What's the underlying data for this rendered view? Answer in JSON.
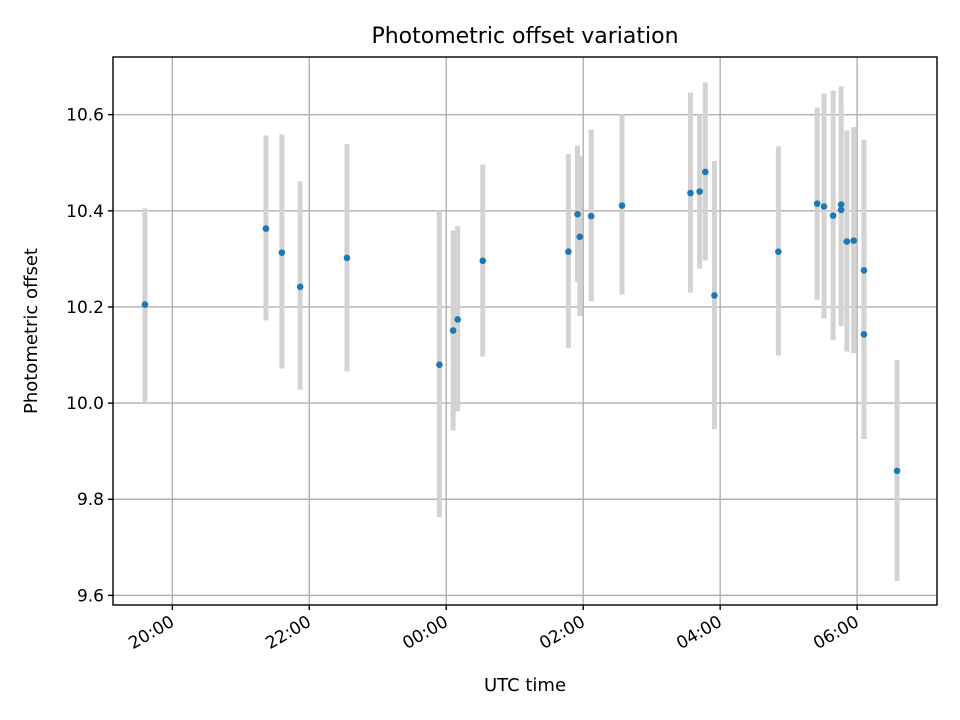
{
  "chart_data": {
    "type": "scatter",
    "title": "Photometric offset variation",
    "xlabel": "UTC time",
    "ylabel": "Photometric offset",
    "x_unit": "UTC clock time",
    "xlim": [
      "19:08",
      "07:10"
    ],
    "ylim": [
      9.58,
      10.72
    ],
    "xticks": [
      "20:00",
      "22:00",
      "00:00",
      "02:00",
      "04:00",
      "06:00"
    ],
    "yticks": [
      "9.6",
      "9.8",
      "10.0",
      "10.2",
      "10.4",
      "10.6"
    ],
    "grid": true,
    "marker_color": "#1f77b4",
    "errorbar_color": "#d3d3d3",
    "points": [
      {
        "t": "19:36",
        "y": 10.205,
        "lo": 10.0,
        "hi": 10.405
      },
      {
        "t": "21:22",
        "y": 10.363,
        "lo": 10.172,
        "hi": 10.557
      },
      {
        "t": "21:36",
        "y": 10.313,
        "lo": 10.072,
        "hi": 10.559
      },
      {
        "t": "21:52",
        "y": 10.242,
        "lo": 10.028,
        "hi": 10.461
      },
      {
        "t": "22:33",
        "y": 10.302,
        "lo": 10.066,
        "hi": 10.539
      },
      {
        "t": "23:54",
        "y": 10.08,
        "lo": 9.763,
        "hi": 10.401
      },
      {
        "t": "00:06",
        "y": 10.151,
        "lo": 9.943,
        "hi": 10.359
      },
      {
        "t": "00:10",
        "y": 10.174,
        "lo": 9.983,
        "hi": 10.368
      },
      {
        "t": "00:32",
        "y": 10.296,
        "lo": 10.097,
        "hi": 10.496
      },
      {
        "t": "01:47",
        "y": 10.315,
        "lo": 10.114,
        "hi": 10.518
      },
      {
        "t": "01:55",
        "y": 10.393,
        "lo": 10.252,
        "hi": 10.536
      },
      {
        "t": "01:57",
        "y": 10.346,
        "lo": 10.181,
        "hi": 10.513
      },
      {
        "t": "02:07",
        "y": 10.389,
        "lo": 10.212,
        "hi": 10.569
      },
      {
        "t": "02:34",
        "y": 10.411,
        "lo": 10.226,
        "hi": 10.601
      },
      {
        "t": "03:34",
        "y": 10.437,
        "lo": 10.23,
        "hi": 10.646
      },
      {
        "t": "03:42",
        "y": 10.44,
        "lo": 10.28,
        "hi": 10.601
      },
      {
        "t": "03:47",
        "y": 10.481,
        "lo": 10.297,
        "hi": 10.667
      },
      {
        "t": "03:55",
        "y": 10.224,
        "lo": 9.946,
        "hi": 10.504
      },
      {
        "t": "04:51",
        "y": 10.315,
        "lo": 10.099,
        "hi": 10.534
      },
      {
        "t": "05:25",
        "y": 10.415,
        "lo": 10.215,
        "hi": 10.615
      },
      {
        "t": "05:31",
        "y": 10.409,
        "lo": 10.176,
        "hi": 10.644
      },
      {
        "t": "05:39",
        "y": 10.39,
        "lo": 10.131,
        "hi": 10.65
      },
      {
        "t": "05:46",
        "y": 10.413,
        "lo": 10.16,
        "hi": 10.659
      },
      {
        "t": "05:46",
        "y": 10.402,
        "lo": 10.19,
        "hi": 10.61
      },
      {
        "t": "05:51",
        "y": 10.336,
        "lo": 10.107,
        "hi": 10.567
      },
      {
        "t": "05:57",
        "y": 10.338,
        "lo": 10.104,
        "hi": 10.574
      },
      {
        "t": "06:06",
        "y": 10.276,
        "lo": 10.005,
        "hi": 10.548
      },
      {
        "t": "06:06",
        "y": 10.143,
        "lo": 9.925,
        "hi": 10.361
      },
      {
        "t": "06:35",
        "y": 9.859,
        "lo": 9.63,
        "hi": 10.09
      }
    ]
  }
}
